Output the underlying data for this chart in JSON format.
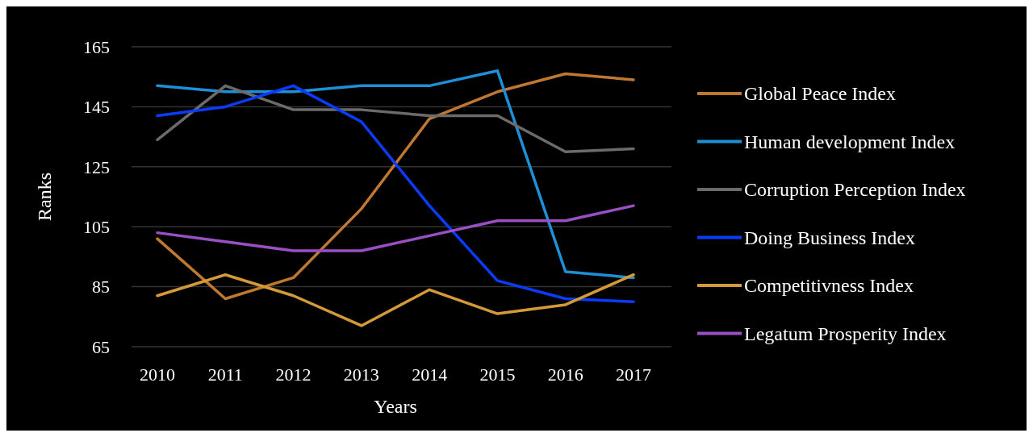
{
  "chart_data": {
    "type": "line",
    "xlabel": "Years",
    "ylabel": "Ranks",
    "categories": [
      "2010",
      "2011",
      "2012",
      "2013",
      "2014",
      "2015",
      "2016",
      "2017"
    ],
    "ylim": [
      65,
      165
    ],
    "yticks": [
      65,
      85,
      105,
      125,
      145,
      165
    ],
    "grid": "y",
    "legend": "right",
    "marker": "none",
    "line_style": "solid",
    "series": [
      {
        "name": "Global Peace Index",
        "color": "#c0772f",
        "values": [
          101,
          81,
          88,
          111,
          141,
          150,
          156,
          154
        ]
      },
      {
        "name": "Human development Index",
        "color": "#1f8fd6",
        "values": [
          152,
          150,
          150,
          152,
          152,
          157,
          90,
          88
        ]
      },
      {
        "name": "Corruption Perception Index",
        "color": "#6b6b6b",
        "values": [
          134,
          152,
          144,
          144,
          142,
          142,
          130,
          131
        ]
      },
      {
        "name": "Doing Business Index",
        "color": "#0a3cff",
        "values": [
          142,
          145,
          152,
          140,
          112,
          87,
          81,
          80
        ]
      },
      {
        "name": "Competitivness Index",
        "color": "#d49a3a",
        "values": [
          82,
          89,
          82,
          72,
          84,
          76,
          79,
          89
        ]
      },
      {
        "name": "Legatum Prosperity Index",
        "color": "#9b4fc4",
        "values": [
          103,
          100,
          97,
          97,
          102,
          107,
          107,
          112
        ]
      }
    ]
  }
}
